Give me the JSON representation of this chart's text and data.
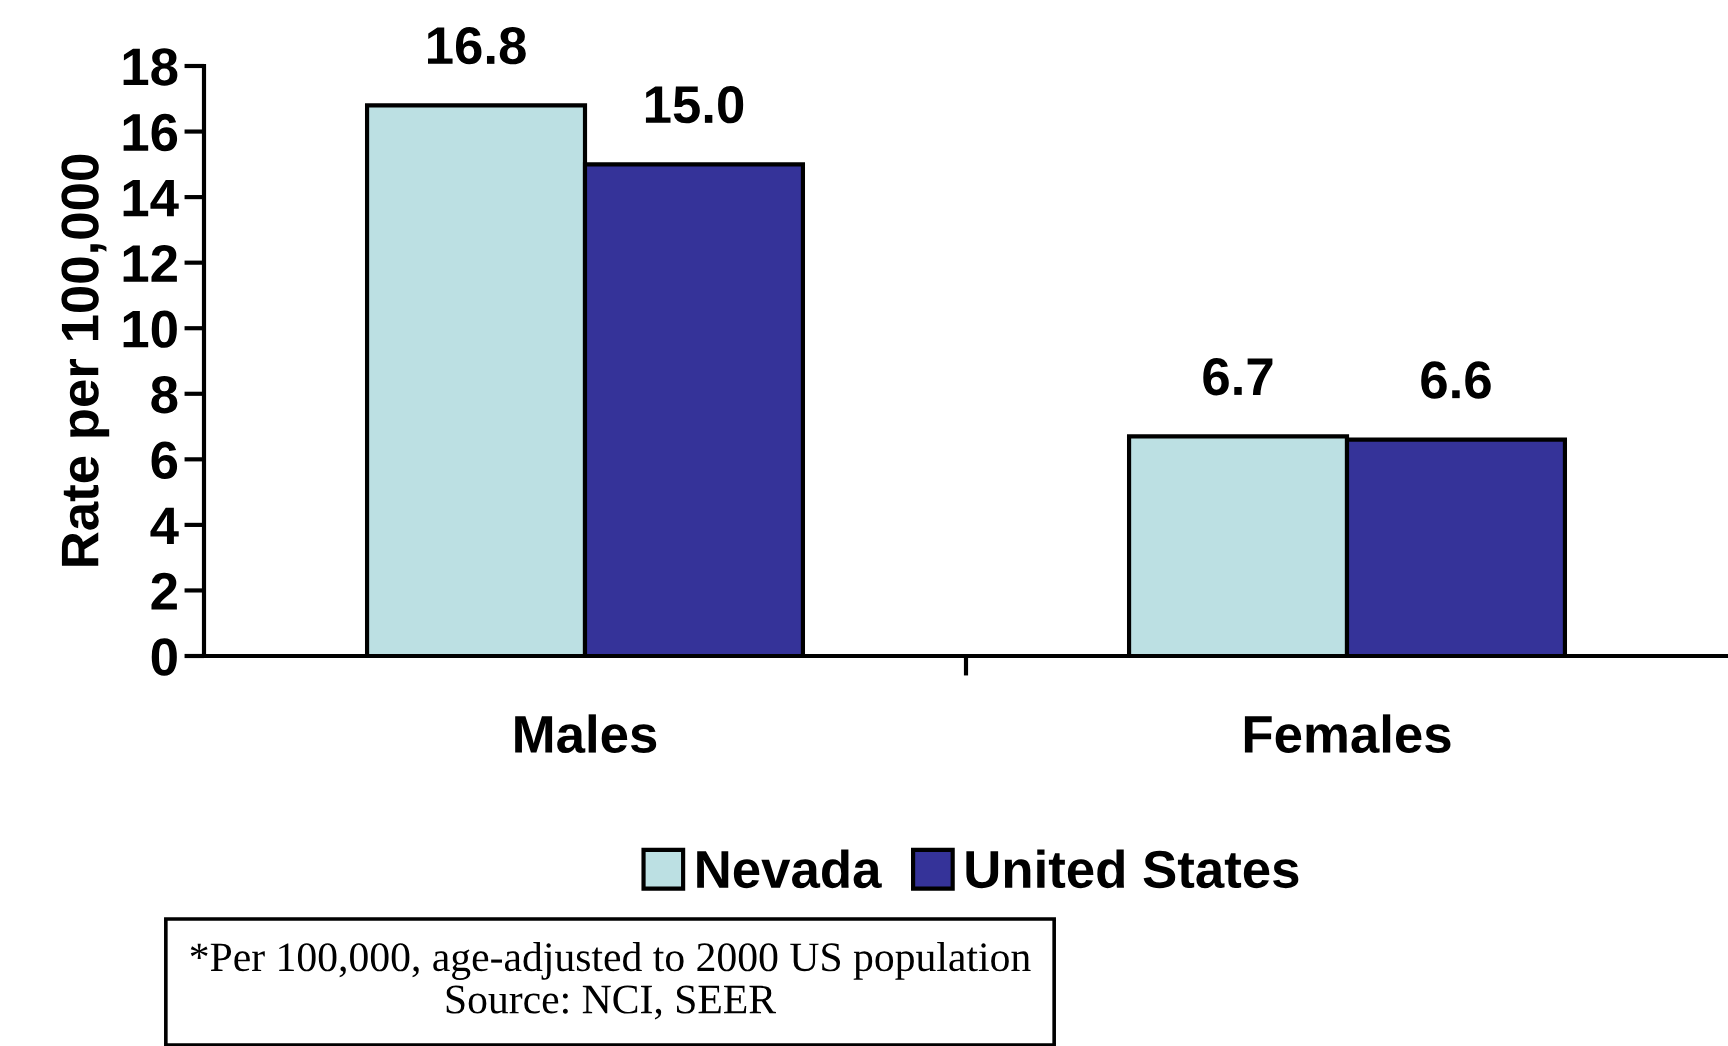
{
  "chart_data": {
    "type": "bar",
    "ylabel": "Rate per 100,000",
    "categories": [
      "Males",
      "Females"
    ],
    "series": [
      {
        "name": "Nevada",
        "color": "#bce0e3",
        "values": [
          16.8,
          6.7
        ],
        "value_labels": [
          "16.8",
          "6.7"
        ]
      },
      {
        "name": "United States",
        "color": "#353399",
        "values": [
          15.0,
          6.6
        ],
        "value_labels": [
          "15.0",
          "6.6"
        ]
      }
    ],
    "ylim": [
      0,
      18
    ],
    "yticks": [
      0,
      2,
      4,
      6,
      8,
      10,
      12,
      14,
      16,
      18
    ],
    "legend": "bottom",
    "annotations": [
      "*Per 100,000, age-adjusted to 2000 US population",
      "Source: NCI, SEER"
    ]
  }
}
